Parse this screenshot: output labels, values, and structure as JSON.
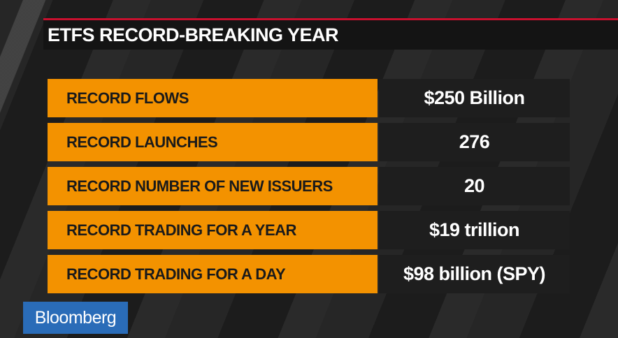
{
  "header": {
    "title": "ETFS RECORD-BREAKING YEAR"
  },
  "table": {
    "rows": [
      [
        "RECORD FLOWS",
        "$250 Billion"
      ],
      [
        "RECORD LAUNCHES",
        "276"
      ],
      [
        "RECORD NUMBER OF NEW ISSUERS",
        "20"
      ],
      [
        "RECORD TRADING FOR A YEAR",
        "$19 trillion"
      ],
      [
        "RECORD TRADING FOR A DAY",
        "$98 billion (SPY)"
      ]
    ]
  },
  "logo": {
    "text": "Bloomberg"
  }
}
